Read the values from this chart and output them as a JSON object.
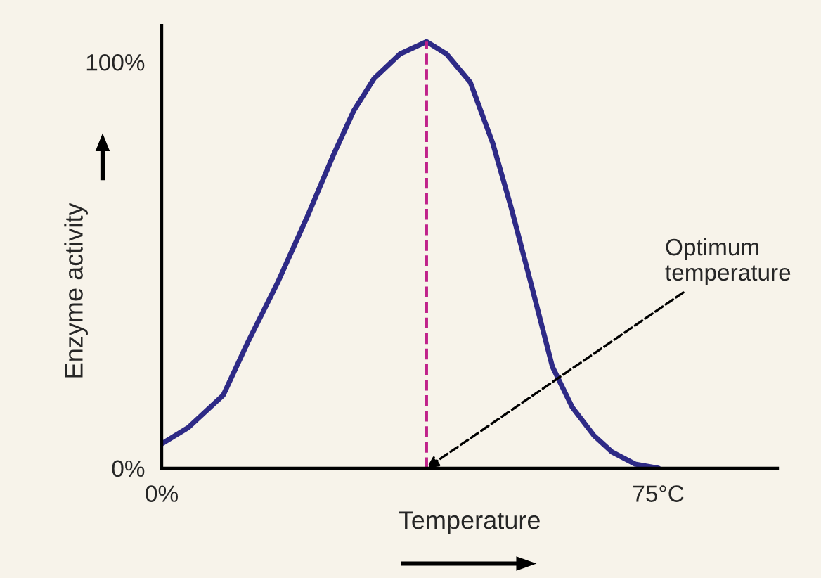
{
  "chart_data": {
    "type": "line",
    "xlabel": "Temperature",
    "ylabel": "Enzyme activity",
    "x": [
      0,
      4,
      9.3,
      13,
      17.6,
      22,
      25.9,
      29,
      32.1,
      36,
      40,
      43,
      46.6,
      50,
      52.8,
      56,
      59,
      62,
      65.3,
      68,
      71.5,
      75
    ],
    "series": [
      {
        "color": "#2e2a86",
        "values": [
          6,
          10,
          18,
          31,
          46,
          62,
          77,
          88,
          96,
          102,
          105,
          102,
          95,
          80,
          64,
          44,
          25,
          15,
          8,
          4,
          1,
          0
        ]
      }
    ],
    "xlim": [
      0,
      93
    ],
    "ylim": [
      0,
      109
    ],
    "xticks": [
      {
        "value": 0,
        "label": "0%"
      },
      {
        "value": 75,
        "label": "75°C"
      }
    ],
    "yticks": [
      {
        "value": 0,
        "label": "0%"
      },
      {
        "value": 100,
        "label": "100%"
      }
    ],
    "ref_lines": [
      {
        "axis": "x",
        "value": 40,
        "color": "#c0228a",
        "line_style": "dashed"
      }
    ],
    "annotations": [
      {
        "text": "Optimum\ntemperature",
        "x": 40,
        "y": 0
      }
    ],
    "grid": false,
    "legend": false,
    "marker": "none",
    "line_style": "solid"
  }
}
